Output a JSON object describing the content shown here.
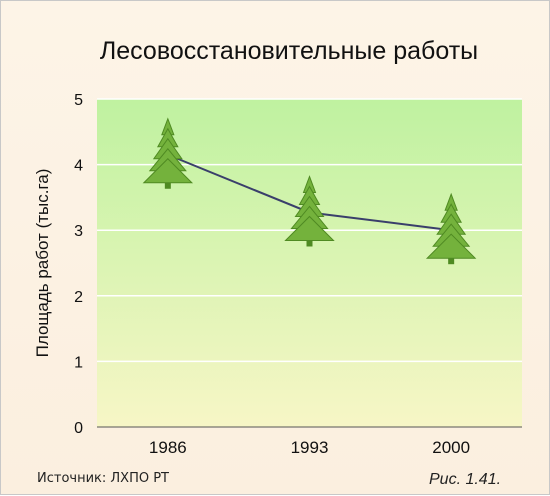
{
  "chart_data": {
    "type": "line",
    "title": "Лесовосстановительные работы",
    "ylabel": "Площадь работ (тыс.га)",
    "xlabel": "",
    "categories": [
      "1986",
      "1993",
      "2000"
    ],
    "values": [
      4.15,
      3.27,
      3.0
    ],
    "ylim": [
      0,
      5
    ],
    "yticks": [
      "0",
      "1",
      "2",
      "3",
      "4",
      "5"
    ],
    "grid": true,
    "marker": "fir-tree-icon",
    "colors": {
      "line": "#3a3f6b",
      "marker_fill": "#74b23c",
      "marker_stroke": "#4f8a22",
      "plot_top": "#bff2a0",
      "plot_bottom": "#f7f6c6",
      "grid": "#ffffff"
    }
  },
  "footer": {
    "source": "Источник: ЛХПО РТ",
    "figure": "Рис. 1.41."
  }
}
